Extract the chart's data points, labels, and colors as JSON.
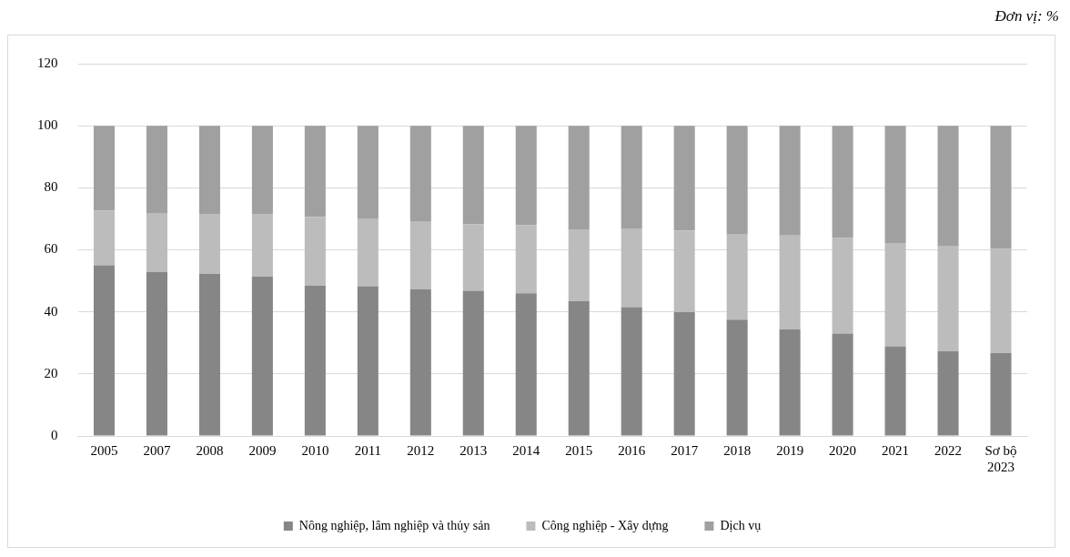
{
  "chart_data": {
    "type": "bar",
    "stacked": true,
    "annotations": [
      "Đơn vị: %"
    ],
    "categories": [
      "2005",
      "2007",
      "2008",
      "2009",
      "2010",
      "2011",
      "2012",
      "2013",
      "2014",
      "2015",
      "2016",
      "2017",
      "2018",
      "2019",
      "2020",
      "2021",
      "2022",
      "Sơ bộ\n2023"
    ],
    "series": [
      {
        "name": "Nông nghiệp, lâm nghiệp và thủy sản",
        "color": "#868686",
        "values": [
          55.0,
          52.8,
          52.2,
          51.4,
          48.5,
          48.3,
          47.3,
          46.8,
          46.0,
          43.4,
          41.5,
          39.9,
          37.5,
          34.3,
          33.0,
          28.9,
          27.3,
          26.7
        ]
      },
      {
        "name": "Công nghiệp - Xây dựng",
        "color": "#bcbcbc",
        "values": [
          17.7,
          19.1,
          19.4,
          20.2,
          22.1,
          21.6,
          21.7,
          21.4,
          21.9,
          23.2,
          25.2,
          26.3,
          27.4,
          30.3,
          30.8,
          33.3,
          33.8,
          33.6
        ]
      },
      {
        "name": "Dịch vụ",
        "color": "#a0a0a0",
        "values": [
          27.3,
          28.1,
          28.4,
          28.4,
          29.4,
          30.1,
          31.0,
          31.8,
          32.1,
          33.4,
          33.3,
          33.8,
          35.1,
          35.4,
          36.2,
          37.8,
          38.9,
          39.7
        ]
      }
    ],
    "ylim": [
      0,
      120
    ],
    "yticks": [
      0,
      20,
      40,
      60,
      80,
      100,
      120
    ],
    "grid": "y",
    "legend": "bottom"
  }
}
